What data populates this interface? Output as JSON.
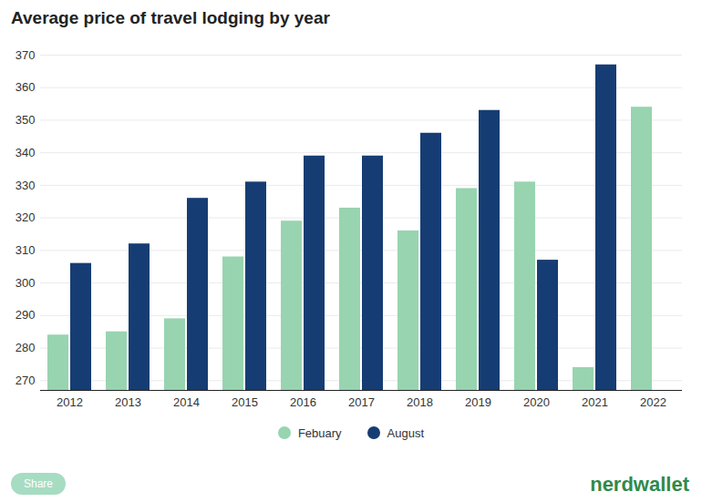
{
  "chart_data": {
    "type": "bar",
    "title": "Average price of travel lodging by year",
    "categories": [
      "2012",
      "2013",
      "2014",
      "2015",
      "2016",
      "2017",
      "2018",
      "2019",
      "2020",
      "2021",
      "2022"
    ],
    "series": [
      {
        "name": "Febuary",
        "color": "#98d4b0",
        "values": [
          284,
          285,
          289,
          308,
          319,
          323,
          316,
          329,
          331,
          274,
          354
        ]
      },
      {
        "name": "August",
        "color": "#163d73",
        "values": [
          306,
          312,
          326,
          331,
          339,
          339,
          346,
          353,
          307,
          367,
          null
        ]
      }
    ],
    "ylim": [
      267,
      370
    ],
    "yticks": [
      270,
      280,
      290,
      300,
      310,
      320,
      330,
      340,
      350,
      360,
      370
    ],
    "grid": true,
    "legend": "bottom",
    "annotations": [
      "Share",
      "nerdwallet"
    ]
  }
}
